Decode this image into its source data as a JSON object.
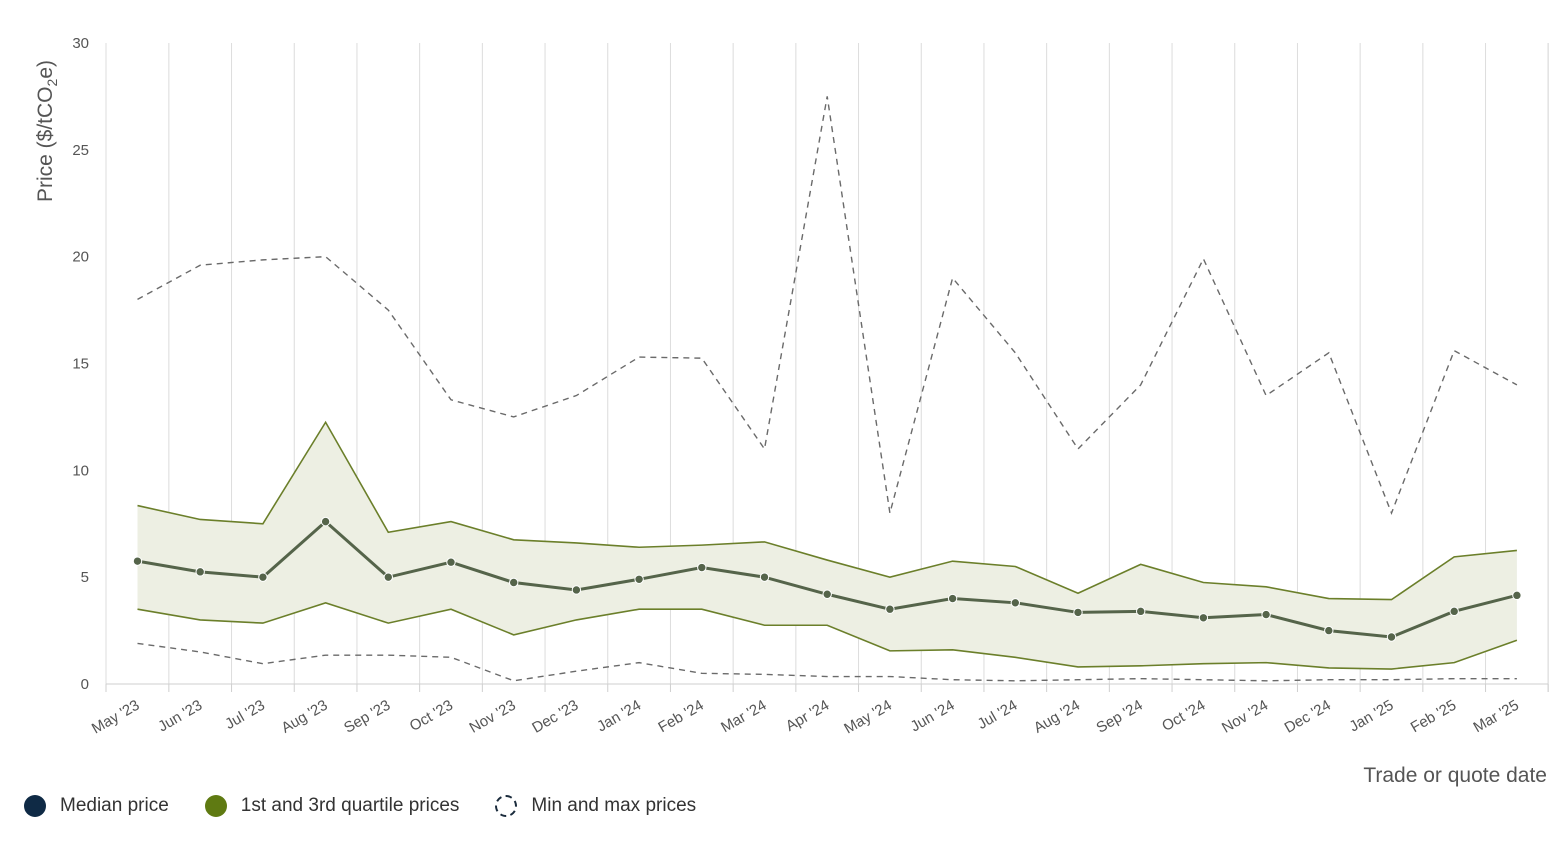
{
  "chart_data": {
    "type": "line",
    "xlabel": "Trade or quote date",
    "ylabel": "Price ($/tCO2e)",
    "ylabel_parts": {
      "before": "Price ($/tCO",
      "sub": "2",
      "after": "e)"
    },
    "ylim": [
      0,
      30
    ],
    "yticks": [
      "0",
      "5",
      "10",
      "15",
      "20",
      "25",
      "30"
    ],
    "grid": "vertical",
    "legend_position": "bottom-left",
    "categories": [
      "May '23",
      "Jun '23",
      "Jul '23",
      "Aug '23",
      "Sep '23",
      "Oct '23",
      "Nov '23",
      "Dec '23",
      "Jan '24",
      "Feb '24",
      "Mar '24",
      "Apr '24",
      "May '24",
      "Jun '24",
      "Jul '24",
      "Aug '24",
      "Sep '24",
      "Oct '24",
      "Nov '24",
      "Dec '24",
      "Jan '25",
      "Feb '25",
      "Mar '25"
    ],
    "series": [
      {
        "name": "Median price",
        "style": "solid-markers",
        "values": [
          5.75,
          5.25,
          5.0,
          7.6,
          5.0,
          5.7,
          4.75,
          4.4,
          4.9,
          5.45,
          5.0,
          4.2,
          3.5,
          4.0,
          3.8,
          3.35,
          3.4,
          3.1,
          3.25,
          2.5,
          2.2,
          3.4,
          4.15
        ]
      },
      {
        "name": "1st quartile price",
        "style": "band-lower",
        "values": [
          3.5,
          3.0,
          2.85,
          3.8,
          2.85,
          3.5,
          2.3,
          3.0,
          3.5,
          3.5,
          2.75,
          2.75,
          1.55,
          1.6,
          1.25,
          0.8,
          0.85,
          0.95,
          1.0,
          0.75,
          0.7,
          1.0,
          2.05
        ]
      },
      {
        "name": "3rd quartile price",
        "style": "band-upper",
        "values": [
          8.35,
          7.7,
          7.5,
          12.25,
          7.1,
          7.6,
          6.75,
          6.6,
          6.4,
          6.5,
          6.65,
          5.8,
          5.0,
          5.75,
          5.5,
          4.25,
          5.6,
          4.75,
          4.55,
          4.0,
          3.95,
          5.95,
          6.25
        ]
      },
      {
        "name": "Min price",
        "style": "dashed",
        "values": [
          1.9,
          1.5,
          0.95,
          1.35,
          1.35,
          1.25,
          0.15,
          0.6,
          1.0,
          0.5,
          0.45,
          0.35,
          0.35,
          0.2,
          0.15,
          0.2,
          0.25,
          0.2,
          0.15,
          0.2,
          0.2,
          0.25,
          0.25
        ]
      },
      {
        "name": "Max price",
        "style": "dashed",
        "values": [
          18.0,
          19.6,
          19.85,
          20.0,
          17.5,
          13.3,
          12.5,
          13.5,
          15.3,
          15.25,
          11.0,
          27.5,
          8.0,
          19.0,
          15.5,
          11.0,
          14.0,
          19.9,
          13.5,
          15.5,
          8.0,
          15.6,
          14.0
        ]
      }
    ],
    "legend": [
      {
        "label": "Median price",
        "color": "#0f2a45",
        "style": "filled"
      },
      {
        "label": "1st and 3rd quartile prices",
        "color": "#5f7a12",
        "style": "filled"
      },
      {
        "label": "Min and max prices",
        "color": "#1a2b3c",
        "style": "dashed"
      }
    ],
    "colors": {
      "median_line": "#55644a",
      "quartile_line": "#6b7f2a",
      "band_fill": "#edefe3",
      "minmax_line": "#6a6a6a",
      "grid": "#dcdcdc"
    }
  }
}
